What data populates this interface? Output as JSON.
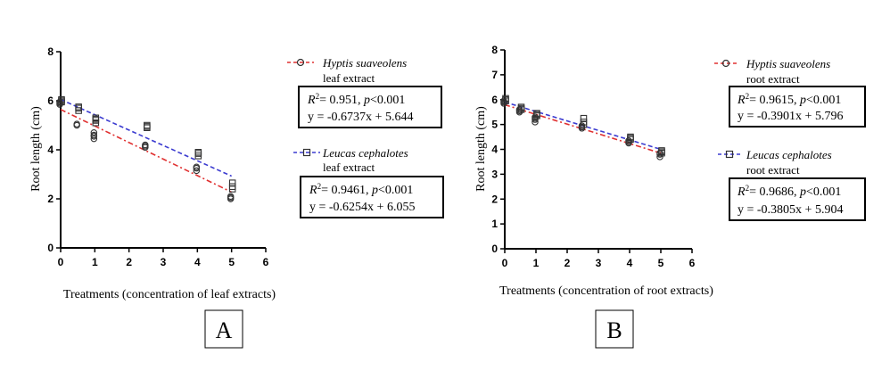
{
  "chart_data": [
    {
      "type": "scatter",
      "panel_label": "A",
      "xlabel": "Treatments (concentration of leaf extracts)",
      "ylabel": "Root length (cm)",
      "xlim": [
        0,
        6
      ],
      "ylim": [
        0,
        8
      ],
      "x_ticks": [
        "0",
        "1",
        "2",
        "3",
        "4",
        "5",
        "6"
      ],
      "y_ticks": [
        "0",
        "2",
        "4",
        "6",
        "8"
      ],
      "grid": false,
      "legend_position": "right",
      "series": [
        {
          "name": "Hyptis suaveolens",
          "name_sub": "leaf extract",
          "color": "#e03030",
          "marker": "circle",
          "points": [
            [
              0,
              5.95
            ],
            [
              0,
              5.9
            ],
            [
              0,
              5.85
            ],
            [
              0.5,
              5.0
            ],
            [
              0.5,
              5.05
            ],
            [
              1,
              4.7
            ],
            [
              1,
              4.55
            ],
            [
              1,
              4.45
            ],
            [
              1,
              4.6
            ],
            [
              2.5,
              4.2
            ],
            [
              2.5,
              4.1
            ],
            [
              2.5,
              4.15
            ],
            [
              4,
              3.25
            ],
            [
              4,
              3.15
            ],
            [
              4,
              3.3
            ],
            [
              5,
              2.1
            ],
            [
              5,
              2.0
            ],
            [
              5,
              2.05
            ]
          ],
          "fit": {
            "slope": -0.6737,
            "intercept": 5.644
          },
          "stats_line1_a": "R",
          "stats_line1_sup": "2",
          "stats_line1_b": "= 0.951, ",
          "stats_line1_p": "p",
          "stats_line1_c": "<0.001",
          "stats_line2": "y = -0.6737x + 5.644"
        },
        {
          "name": "Leucas cephalotes",
          "name_sub": "leaf extract",
          "color": "#3b3bd0",
          "marker": "square",
          "points": [
            [
              0,
              6.05
            ],
            [
              0,
              6.0
            ],
            [
              0,
              5.95
            ],
            [
              0.5,
              5.75
            ],
            [
              0.5,
              5.6
            ],
            [
              0.5,
              5.7
            ],
            [
              1,
              5.3
            ],
            [
              1,
              5.2
            ],
            [
              1,
              5.1
            ],
            [
              1,
              5.25
            ],
            [
              2.5,
              5.0
            ],
            [
              2.5,
              4.9
            ],
            [
              2.5,
              4.95
            ],
            [
              4,
              3.9
            ],
            [
              4,
              3.75
            ],
            [
              4,
              3.85
            ],
            [
              5,
              2.65
            ],
            [
              5,
              2.5
            ],
            [
              5,
              2.4
            ]
          ],
          "fit": {
            "slope": -0.6254,
            "intercept": 6.055
          },
          "stats_line1_a": "R",
          "stats_line1_sup": "2",
          "stats_line1_b": "= 0.9461, ",
          "stats_line1_p": "p",
          "stats_line1_c": "<0.001",
          "stats_line2": "y = -0.6254x + 6.055"
        }
      ]
    },
    {
      "type": "scatter",
      "panel_label": "B",
      "xlabel": "Treatments (concentration of root extracts)",
      "ylabel": "Root length (cm)",
      "xlim": [
        0,
        6
      ],
      "ylim": [
        0,
        8
      ],
      "x_ticks": [
        "0",
        "1",
        "2",
        "3",
        "4",
        "5",
        "6"
      ],
      "y_ticks": [
        "0",
        "1",
        "2",
        "3",
        "4",
        "5",
        "6",
        "7",
        "8"
      ],
      "grid": false,
      "legend_position": "right",
      "series": [
        {
          "name": "Hyptis suaveolens",
          "name_sub": "root extract",
          "color": "#e03030",
          "marker": "circle",
          "points": [
            [
              0,
              5.95
            ],
            [
              0,
              5.85
            ],
            [
              0,
              5.9
            ],
            [
              0.5,
              5.6
            ],
            [
              0.5,
              5.5
            ],
            [
              0.5,
              5.55
            ],
            [
              1,
              5.3
            ],
            [
              1,
              5.2
            ],
            [
              1,
              5.1
            ],
            [
              1,
              5.25
            ],
            [
              2.5,
              4.9
            ],
            [
              2.5,
              4.85
            ],
            [
              2.5,
              4.95
            ],
            [
              4,
              4.3
            ],
            [
              4,
              4.35
            ],
            [
              4,
              4.25
            ],
            [
              5,
              3.8
            ],
            [
              5,
              3.7
            ],
            [
              5,
              3.85
            ]
          ],
          "fit": {
            "slope": -0.3901,
            "intercept": 5.796
          },
          "stats_line1_a": "R",
          "stats_line1_sup": "2",
          "stats_line1_b": "= 0.9615, ",
          "stats_line1_p": "p",
          "stats_line1_c": "<0.001",
          "stats_line2": "y = -0.3901x + 5.796"
        },
        {
          "name": "Leucas cephalotes",
          "name_sub": "root extract",
          "color": "#3b3bd0",
          "marker": "square",
          "points": [
            [
              0,
              6.05
            ],
            [
              0,
              6.0
            ],
            [
              0,
              5.95
            ],
            [
              0.5,
              5.7
            ],
            [
              0.5,
              5.65
            ],
            [
              0.5,
              5.6
            ],
            [
              1,
              5.45
            ],
            [
              1,
              5.35
            ],
            [
              1,
              5.4
            ],
            [
              2.5,
              5.25
            ],
            [
              2.5,
              5.1
            ],
            [
              2.5,
              5.0
            ],
            [
              4,
              4.5
            ],
            [
              4,
              4.4
            ],
            [
              4,
              4.45
            ],
            [
              5,
              3.95
            ],
            [
              5,
              3.9
            ],
            [
              5,
              3.85
            ]
          ],
          "fit": {
            "slope": -0.3805,
            "intercept": 5.904
          },
          "stats_line1_a": "R",
          "stats_line1_sup": "2",
          "stats_line1_b": "= 0.9686, ",
          "stats_line1_p": "p",
          "stats_line1_c": "<0.001",
          "stats_line2": "y = -0.3805x + 5.904"
        }
      ]
    }
  ]
}
